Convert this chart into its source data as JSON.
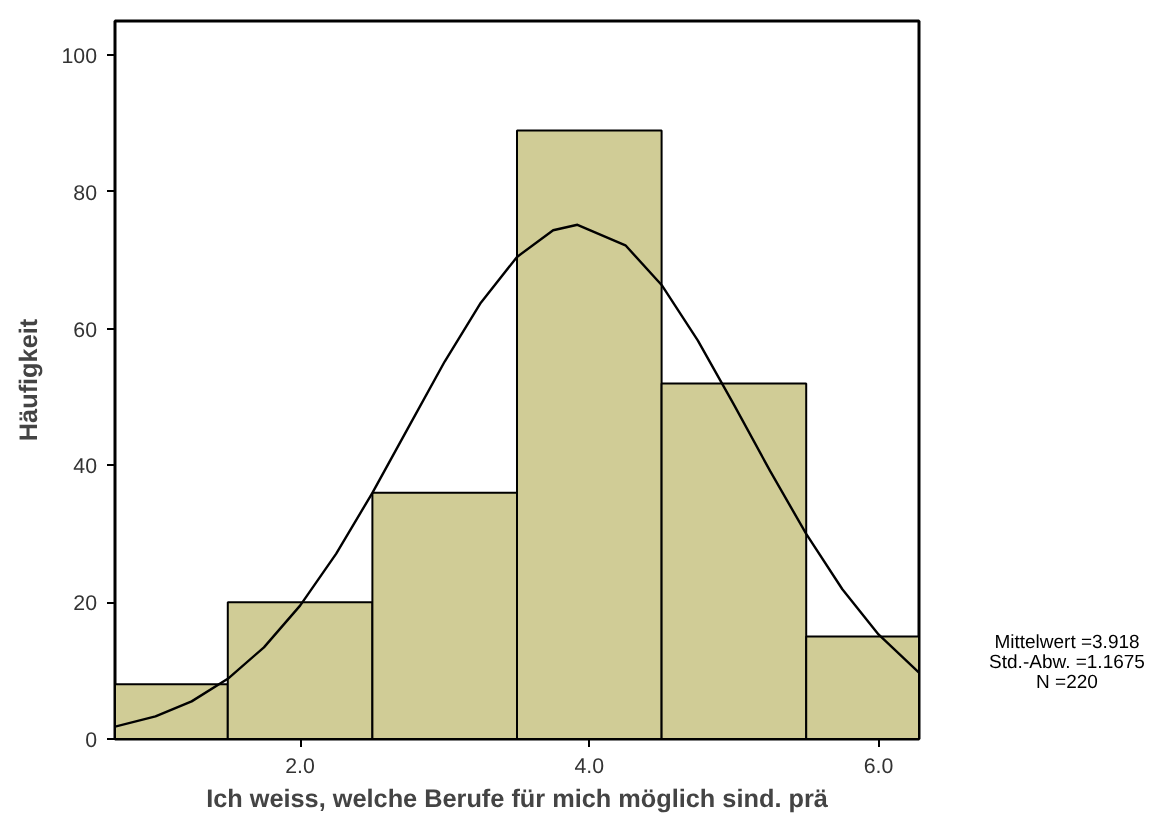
{
  "chart_data": {
    "type": "histogram",
    "xlabel": "Ich weiss, welche Berufe für mich möglich sind. prä",
    "ylabel": "Häufigkeit",
    "bins": [
      0.72,
      1.5,
      2.5,
      3.5,
      4.5,
      5.5,
      6.28
    ],
    "values": [
      8,
      20,
      36,
      89,
      52,
      15
    ],
    "color": "#d0cc96",
    "series": [
      {
        "type": "line",
        "color": "#000000",
        "x": [
          0.72,
          1.0,
          1.25,
          1.5,
          1.75,
          2.0,
          2.25,
          2.5,
          2.75,
          3.0,
          3.25,
          3.5,
          3.75,
          3.918,
          4.25,
          4.5,
          4.75,
          5.0,
          5.25,
          5.5,
          5.75,
          6.0,
          6.28
        ],
        "values": [
          1.8,
          3.3,
          5.5,
          8.8,
          13.4,
          19.5,
          27.1,
          36.0,
          45.6,
          55.2,
          63.8,
          70.5,
          74.4,
          75.2,
          72.2,
          66.4,
          58.3,
          48.9,
          39.2,
          30.0,
          21.9,
          15.3,
          9.7
        ]
      }
    ],
    "xlim": [
      0.72,
      6.28
    ],
    "xticks": [
      {
        "value": 2,
        "label": "2.0"
      },
      {
        "value": 4,
        "label": "4.0"
      },
      {
        "value": 6,
        "label": "6.0"
      }
    ],
    "ylim": [
      0,
      105
    ],
    "yticks": [
      0,
      20,
      40,
      60,
      80,
      100
    ],
    "grid": false,
    "annotations": [
      "Mittelwert =3.918",
      "Std.-Abw. =1.1675",
      "N =220"
    ]
  }
}
